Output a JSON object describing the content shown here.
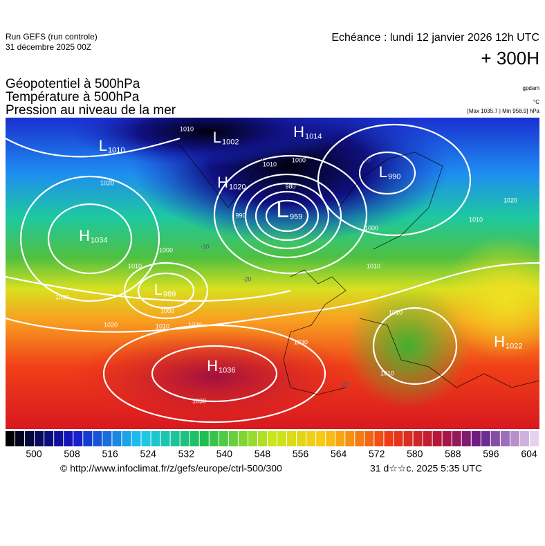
{
  "header": {
    "run": "Run GEFS (run controle)",
    "date": "31 décembre 2025 00Z",
    "valid": "Echéance : lundi 12 janvier 2026 12h UTC",
    "lead": "+ 300H",
    "fields": [
      "Géopotentiel à 500hPa",
      "Température à 500hPa",
      "Pression au niveau de la mer"
    ],
    "units": [
      "gpdam",
      "°C",
      "[Max 1035.7 | Min 958.9] hPa"
    ]
  },
  "map": {
    "centers": [
      {
        "letter": "L",
        "value": "1010"
      },
      {
        "letter": "L",
        "value": "1002"
      },
      {
        "letter": "H",
        "value": "1014"
      },
      {
        "letter": "H",
        "value": "1020"
      },
      {
        "letter": "L",
        "value": "990"
      },
      {
        "letter": "L",
        "value": "959"
      },
      {
        "letter": "H",
        "value": "1034"
      },
      {
        "letter": "L",
        "value": "989"
      },
      {
        "letter": "H",
        "value": "1022"
      },
      {
        "letter": "H",
        "value": "1036"
      }
    ],
    "isobar_labels": [
      "1010",
      "1010",
      "1000",
      "980",
      "990",
      "1020",
      "1000",
      "1010",
      "1000",
      "1010",
      "1020",
      "1020",
      "1030",
      "1030",
      "1030",
      "1020",
      "1010",
      "1010",
      "1010",
      "1010",
      "1000"
    ],
    "temperature_labels": [
      "-30",
      "-20",
      "-20",
      "-40"
    ]
  },
  "colorbar": {
    "ticks": [
      500,
      508,
      516,
      524,
      532,
      540,
      548,
      556,
      564,
      572,
      580,
      588,
      596,
      604
    ]
  },
  "footer": {
    "url": "© http://www.infoclimat.fr/z/gefs/europe/ctrl-500/300",
    "time": "31 d☆☆c. 2025  5:35 UTC"
  }
}
